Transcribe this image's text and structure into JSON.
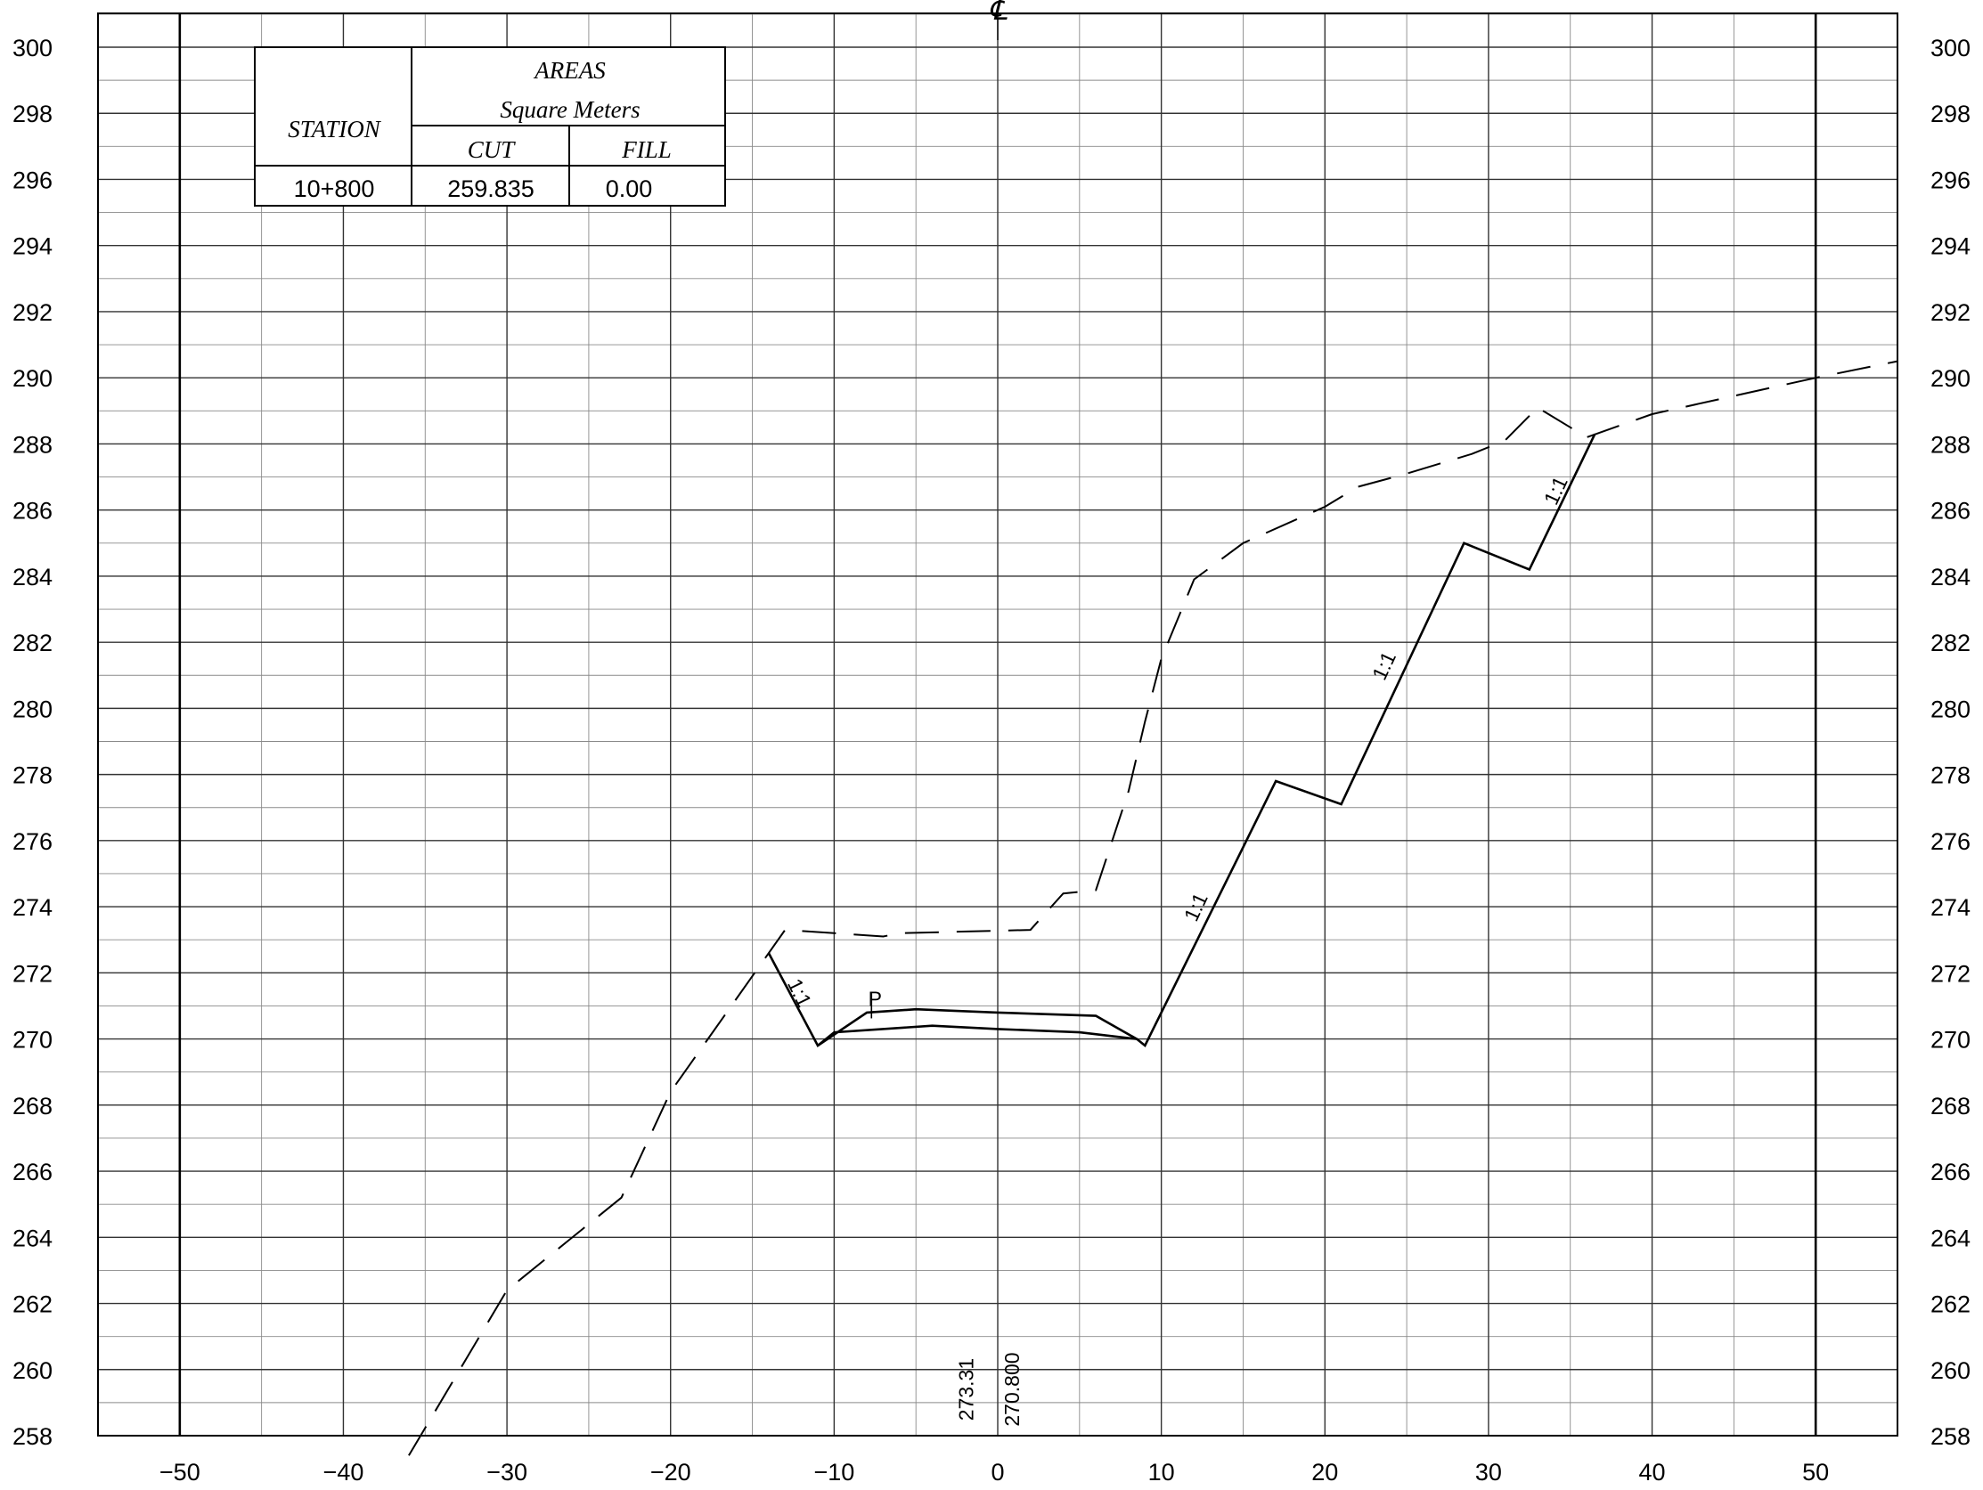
{
  "section": {
    "centerline_symbol": "℄",
    "x_axis": {
      "min": -55,
      "max": 55,
      "major_step": 10,
      "minor_step": 5,
      "tick_labels": [
        "−50",
        "−40",
        "−30",
        "−20",
        "−10",
        "0",
        "10",
        "20",
        "30",
        "40",
        "50"
      ]
    },
    "y_axis": {
      "min": 258,
      "max": 300,
      "major_step": 2,
      "minor_step": 1,
      "tick_labels": [
        "258",
        "260",
        "262",
        "264",
        "266",
        "268",
        "270",
        "272",
        "274",
        "276",
        "278",
        "280",
        "282",
        "284",
        "286",
        "288",
        "290",
        "292",
        "294",
        "296",
        "298",
        "300"
      ]
    },
    "existing_ground": [
      [
        -36,
        257.4
      ],
      [
        -30,
        262.4
      ],
      [
        -23,
        265.2
      ],
      [
        -20,
        268.4
      ],
      [
        -13,
        273.3
      ],
      [
        -7,
        273.1
      ],
      [
        -6,
        273.2
      ],
      [
        2,
        273.3
      ],
      [
        4,
        274.4
      ],
      [
        6,
        274.5
      ],
      [
        8,
        277.5
      ],
      [
        9,
        279.6
      ],
      [
        10,
        281.5
      ],
      [
        12,
        283.9
      ],
      [
        15,
        285.0
      ],
      [
        20,
        286.1
      ],
      [
        22,
        286.7
      ],
      [
        25,
        287.1
      ],
      [
        29,
        287.7
      ],
      [
        31,
        288.1
      ],
      [
        33,
        289.1
      ],
      [
        36,
        288.2
      ],
      [
        40,
        288.9
      ],
      [
        50,
        290.0
      ],
      [
        55,
        290.5
      ]
    ],
    "design_profile": [
      [
        -14,
        272.6
      ],
      [
        -11,
        269.8
      ],
      [
        -10,
        270.2
      ],
      [
        -4,
        270.4
      ],
      [
        0,
        270.3
      ],
      [
        5,
        270.2
      ],
      [
        8.5,
        270.0
      ],
      [
        9,
        269.8
      ],
      [
        17,
        277.8
      ],
      [
        21,
        277.1
      ],
      [
        28.5,
        285.0
      ],
      [
        32.5,
        284.2
      ],
      [
        36.5,
        288.3
      ]
    ],
    "pavement_top": [
      [
        -11,
        269.8
      ],
      [
        -8,
        270.8
      ],
      [
        -5,
        270.9
      ],
      [
        0,
        270.8
      ],
      [
        6,
        270.7
      ],
      [
        8.5,
        270.0
      ]
    ],
    "slope_labels": [
      {
        "text": "1:1",
        "x": -12.5,
        "y": 271.3,
        "angle": 64
      },
      {
        "text": "1:1",
        "x": 12.5,
        "y": 273.9,
        "angle": -65
      },
      {
        "text": "1:1",
        "x": 24.0,
        "y": 281.2,
        "angle": -65
      },
      {
        "text": "1:1",
        "x": 34.5,
        "y": 286.5,
        "angle": -65
      }
    ],
    "station_marker": {
      "text": "P",
      "x": -7.5,
      "y": 271.0
    },
    "elevations": [
      {
        "text": "273.31",
        "x": -1.5,
        "y": 259.4
      },
      {
        "text": "270.800",
        "x": 1.3,
        "y": 259.4
      }
    ]
  },
  "areas_table": {
    "title": "AREAS",
    "units": "Square Meters",
    "station_header": "STATION",
    "cut_header": "CUT",
    "fill_header": "FILL",
    "station": "10+800",
    "cut": "259.835",
    "fill": "0.00"
  }
}
